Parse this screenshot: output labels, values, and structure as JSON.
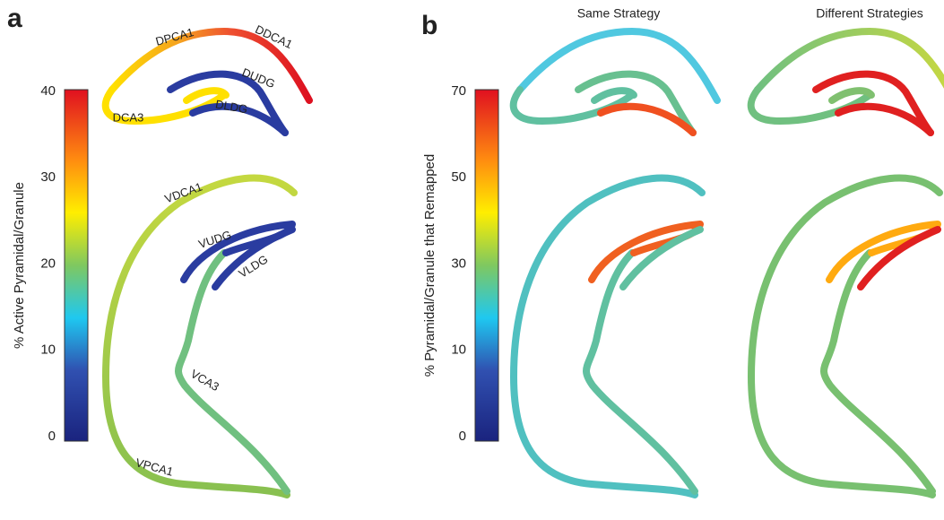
{
  "panel_a": {
    "label": "a",
    "colorbar": {
      "title": "% Active Pyramidal/Granule",
      "ticks": [
        40,
        30,
        20,
        10,
        0
      ]
    },
    "regions": [
      "DPCA1",
      "DDCA1",
      "DUDG",
      "DLDG",
      "DCA3",
      "VDCA1",
      "VUDG",
      "VLDG",
      "VCA3",
      "VPCA1"
    ]
  },
  "panel_b": {
    "label": "b",
    "colorbar": {
      "title": "% Pyramidal/Granule that Remapped",
      "ticks": [
        70,
        50,
        30,
        10,
        0
      ]
    },
    "columns": [
      "Same Strategy",
      "Different Strategies"
    ]
  }
}
